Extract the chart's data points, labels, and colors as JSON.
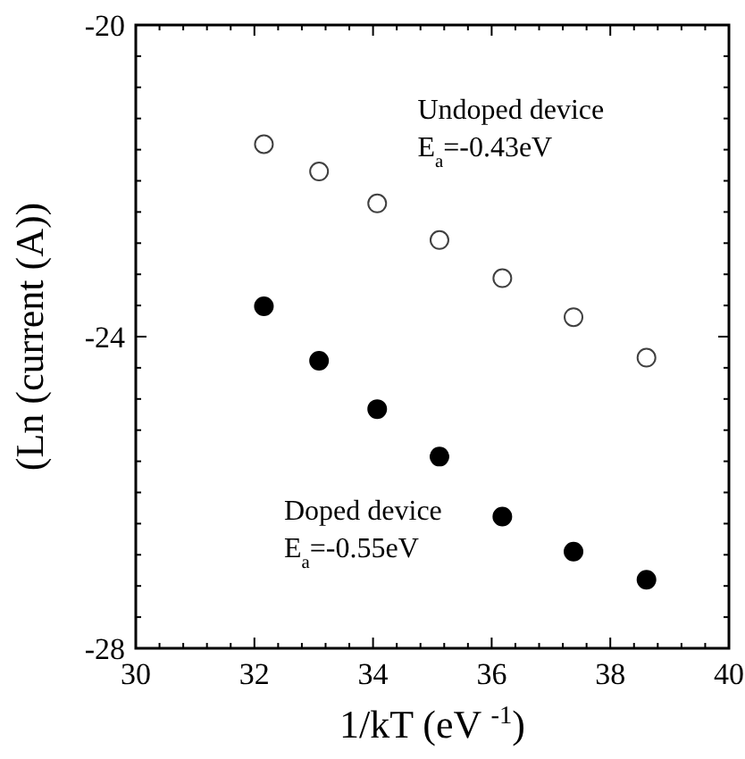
{
  "chart_data": {
    "type": "scatter",
    "xlabel": "1/kT (eV $^{-1}$)",
    "ylabel": "(Ln (current (A))",
    "xlim": [
      30,
      40
    ],
    "ylim": [
      -28,
      -20
    ],
    "xticks": [
      30,
      {
        "value": 30.4,
        "label": null
      },
      {
        "value": 30.8,
        "label": null
      },
      {
        "value": 31.2,
        "label": null
      },
      {
        "value": 31.6,
        "label": null
      },
      32,
      {
        "value": 32.4,
        "label": null
      },
      {
        "value": 32.8,
        "label": null
      },
      {
        "value": 33.2,
        "label": null
      },
      {
        "value": 33.6,
        "label": null
      },
      34,
      {
        "value": 34.4,
        "label": null
      },
      {
        "value": 34.8,
        "label": null
      },
      {
        "value": 35.2,
        "label": null
      },
      {
        "value": 35.6,
        "label": null
      },
      36,
      {
        "value": 36.4,
        "label": null
      },
      {
        "value": 36.8,
        "label": null
      },
      {
        "value": 37.2,
        "label": null
      },
      {
        "value": 37.6,
        "label": null
      },
      38,
      {
        "value": 38.4,
        "label": null
      },
      {
        "value": 38.8,
        "label": null
      },
      {
        "value": 39.2,
        "label": null
      },
      {
        "value": 39.6,
        "label": null
      },
      40
    ],
    "yticks": [
      -28,
      {
        "value": -27.6,
        "label": null
      },
      {
        "value": -27.2,
        "label": null
      },
      {
        "value": -26.8,
        "label": null
      },
      {
        "value": -26.4,
        "label": null
      },
      {
        "value": -26,
        "label": null
      },
      {
        "value": -25.6,
        "label": null
      },
      {
        "value": -25.2,
        "label": null
      },
      {
        "value": -24.8,
        "label": null
      },
      {
        "value": -24.4,
        "label": null
      },
      -24,
      {
        "value": -23.6,
        "label": null
      },
      {
        "value": -23.2,
        "label": null
      },
      {
        "value": -22.8,
        "label": null
      },
      {
        "value": -22.4,
        "label": null
      },
      {
        "value": -22,
        "label": null
      },
      {
        "value": -21.6,
        "label": null
      },
      {
        "value": -21.2,
        "label": null
      },
      {
        "value": -20.8,
        "label": null
      },
      {
        "value": -20.4,
        "label": null
      },
      -20
    ],
    "marker": "circle",
    "grid": false,
    "x": [
      32.16,
      33.09,
      34.07,
      35.12,
      36.18,
      37.38,
      38.61
    ],
    "series": [
      {
        "name": "Undoped device",
        "color": "#404040",
        "values": [
          -21.53,
          -21.88,
          -22.29,
          -22.76,
          -23.25,
          -23.75,
          -24.27
        ]
      },
      {
        "name": "Doped device",
        "color": "#000000",
        "values": [
          -23.61,
          -24.31,
          -24.93,
          -25.54,
          -26.31,
          -26.76,
          -27.12
        ]
      }
    ],
    "annotations": [
      "E$_{a}$=-0.43eV",
      "E$_{a}$=-0.55eV"
    ]
  }
}
